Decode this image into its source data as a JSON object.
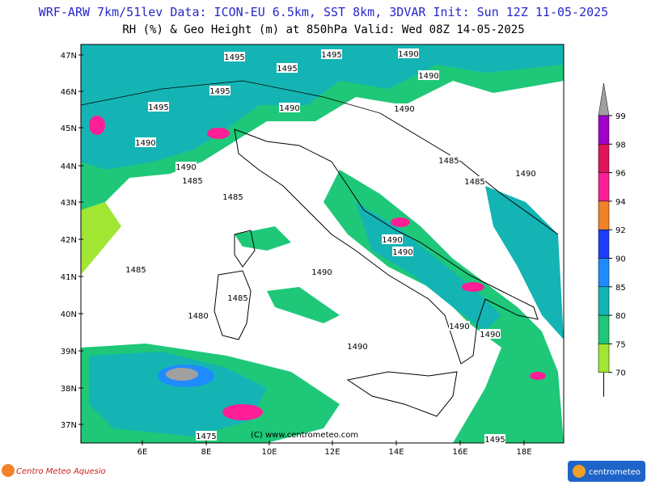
{
  "header": {
    "line1": "WRF-ARW 7km/51lev  Data: ICON-EU 6.5km, SST 8km, 3DVAR  Init: Sun 12Z 11-05-2025",
    "line2": "RH (%) & Geo Height (m) at 850hPa  Valid: Wed 08Z 14-05-2025"
  },
  "map": {
    "lat_labels": [
      "47N",
      "46N",
      "45N",
      "44N",
      "43N",
      "42N",
      "41N",
      "40N",
      "39N",
      "38N",
      "37N"
    ],
    "lon_labels": [
      "6E",
      "8E",
      "10E",
      "12E",
      "14E",
      "16E",
      "18E"
    ],
    "contour_labels": [
      "1495",
      "1495",
      "1490",
      "1495",
      "1490",
      "1495",
      "1495",
      "1490",
      "1490",
      "1490",
      "1490",
      "1485",
      "1485",
      "1485",
      "1490",
      "1485",
      "1490",
      "1490",
      "1485",
      "1490",
      "1485",
      "1480",
      "1490",
      "1490",
      "1490",
      "1475",
      "1495"
    ],
    "watermark": "(C) www.centrometeo.com"
  },
  "legend": {
    "ticks": [
      99,
      98,
      96,
      94,
      92,
      90,
      85,
      80,
      75,
      70
    ],
    "colors": [
      "#a000c8",
      "#e0145a",
      "#ff1e96",
      "#f08228",
      "#1e3cff",
      "#1e8cff",
      "#14b4b4",
      "#1ec878",
      "#a0e632"
    ],
    "over_color": "#a0a0a0"
  },
  "footer": {
    "left_logo": "Centro Meteo Aquesio",
    "right_logo": "centrometeo"
  }
}
